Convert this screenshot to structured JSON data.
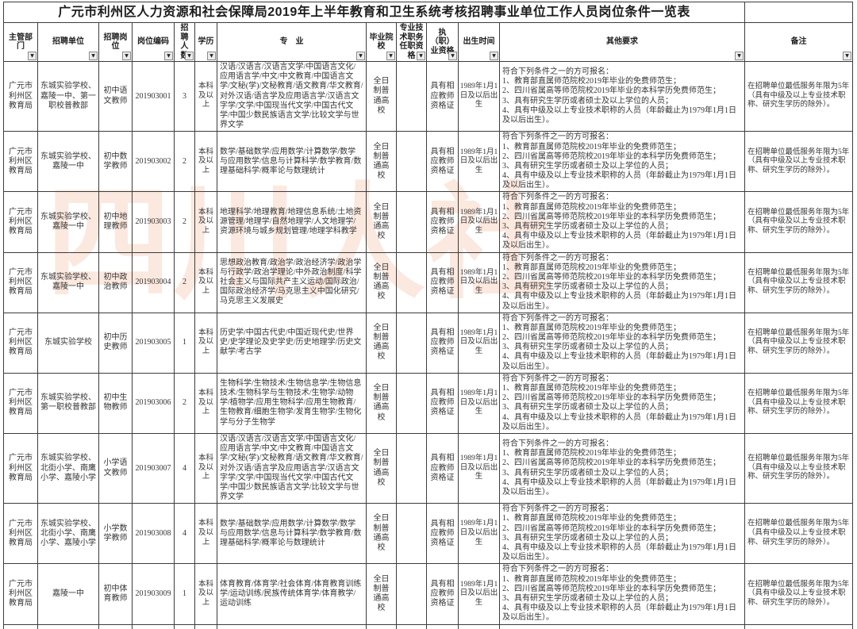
{
  "title": "广元市利州区人力资源和社会保障局2019年上半年教育和卫生系统考核招聘事业单位工作人员岗位条件一览表",
  "watermark": "四川人社",
  "filter_icon": "▼",
  "colors": {
    "border": "#3c3c3c",
    "text": "#2f2f2f",
    "watermark": "rgba(238,166,126,0.26)"
  },
  "table": {
    "columns": [
      {
        "key": "dept",
        "label": "主管部门"
      },
      {
        "key": "unit",
        "label": "招聘单位"
      },
      {
        "key": "position",
        "label": "招聘岗位"
      },
      {
        "key": "code",
        "label": "岗位编码"
      },
      {
        "key": "count",
        "label": "招聘人数"
      },
      {
        "key": "education",
        "label": "学历"
      },
      {
        "key": "major",
        "label": "专　业"
      },
      {
        "key": "school",
        "label": "毕业院校"
      },
      {
        "key": "tech_qual",
        "label": "专业技术职务任职资格"
      },
      {
        "key": "prof_cert",
        "label": "执（职）业资格"
      },
      {
        "key": "birth",
        "label": "出生时间"
      },
      {
        "key": "other",
        "label": "其他要求"
      },
      {
        "key": "remark",
        "label": "备注"
      }
    ],
    "rows": [
      {
        "dept": "广元市利州区教育局",
        "unit": "东城实验学校、嘉陵一中、第一职校普教部",
        "position": "初中语文教师",
        "code": "201903001",
        "count": "3",
        "education": "本科及以上",
        "major": "汉语/汉语言/汉语言文学/中国语言文化/应用语言学/中文/中文教育/中国语言文学/文秘(学)/文秘教育/语文教育/华文教育/对外汉语/语言学及应用语言学/汉语言文字学/文学/中国现当代文学/中国古代文学/中国少数民族语言文学/比较文学与世界文学",
        "school": "全日制普通高校",
        "tech_qual": "",
        "prof_cert": "具有相应教师资格证",
        "birth": "1989年1月1日及以后出生",
        "other": "符合下列条件之一的方可报名：\n1、教育部直属师范院校2019年毕业的免费师范生；\n2、四川省属高等师范院校2019年毕业的本科学历免费师范生；\n3、具有研究生学历或者硕士及以上学位的人员；\n4、具有中级及以上专业技术职称的人员（年龄截止为1979年1月1日及以后出生）。",
        "remark": "在招聘单位最低服务年限为5年（具有中级及以上专业技术职称、研究生学历的除外）。"
      },
      {
        "dept": "广元市利州区教育局",
        "unit": "东城实验学校、嘉陵一中",
        "position": "初中数学教师",
        "code": "201903002",
        "count": "2",
        "education": "本科及以上",
        "major": "数学/基础数学/应用数学/计算数学/数学与应用数学/信息与计算科学/数学教育/数理基础科学/概率论与数理统计",
        "school": "全日制普通高校",
        "tech_qual": "",
        "prof_cert": "具有相应教师资格证",
        "birth": "1989年1月1日及以后出生",
        "other": "符合下列条件之一的方可报名：\n1、教育部直属师范院校2019年毕业的免费师范生；\n2、四川省属高等师范院校2019年毕业的本科学历免费师范生；\n3、具有研究生学历或者硕士及以上学位的人员；\n4、具有中级及以上专业技术职称的人员（年龄截止为1979年1月1日及以后出生）。",
        "remark": "在招聘单位最低服务年限为5年（具有中级及以上专业技术职称、研究生学历的除外）。"
      },
      {
        "dept": "广元市利州区教育局",
        "unit": "东城实验学校、嘉陵一中",
        "position": "初中地理教师",
        "code": "201903003",
        "count": "2",
        "education": "本科及以上",
        "major": "地理科学/地理教育/地理信息系统/土地资源管理/地理学/自然地理学/人文地理学/资源环境与城乡规划管理/地理学科教学",
        "school": "全日制普通高校",
        "tech_qual": "",
        "prof_cert": "具有相应教师资格证",
        "birth": "1989年1月1日及以后出生",
        "other": "符合下列条件之一的方可报名：\n1、教育部直属师范院校2019年毕业的免费师范生；\n2、四川省属高等师范院校2019年毕业的本科学历免费师范生；\n3、具有研究生学历或者硕士及以上学位的人员；\n4、具有中级及以上专业技术职称的人员（年龄截止为1979年1月1日及以后出生）。",
        "remark": "在招聘单位最低服务年限为5年（具有中级及以上专业技术职称、研究生学历的除外）。"
      },
      {
        "dept": "广元市利州区教育局",
        "unit": "东城实验学校、嘉陵一中",
        "position": "初中政治教师",
        "code": "201903004",
        "count": "2",
        "education": "本科及以上",
        "major": "思想政治教育/政治学/政治经济学/政治学与行政学/政治学理论/中外政治制度/科学社会主义与国际共产主义运动/国际政治/国际政治经济学/马克思主义中国化研究/马克思主义发展史",
        "school": "全日制普通高校",
        "tech_qual": "",
        "prof_cert": "具有相应教师资格证",
        "birth": "1989年1月1日及以后出生",
        "other": "符合下列条件之一的方可报名：\n1、教育部直属师范院校2019年毕业的免费师范生；\n2、四川省属高等师范院校2019年毕业的本科学历免费师范生；\n3、具有研究生学历或者硕士及以上学位的人员；\n4、具有中级及以上专业技术职称的人员（年龄截止为1979年1月1日及以后出生）。",
        "remark": "在招聘单位最低服务年限为5年（具有中级及以上专业技术职称、研究生学历的除外）。"
      },
      {
        "dept": "广元市利州区教育局",
        "unit": "东城实验学校",
        "position": "初中历史教师",
        "code": "201903005",
        "count": "1",
        "education": "本科及以上",
        "major": "历史学/中国古代史/中国近现代史/世界史/史学理论及史学史/历史地理学/历史文献学/考古学",
        "school": "全日制普通高校",
        "tech_qual": "",
        "prof_cert": "具有相应教师资格证",
        "birth": "1989年1月1日及以后出生",
        "other": "符合下列条件之一的方可报名：\n1、教育部直属师范院校2019年毕业的免费师范生；\n2、四川省属高等师范院校2019年毕业的本科学历免费师范生；\n3、具有研究生学历或者硕士及以上学位的人员；\n4、具有中级及以上专业技术职称的人员（年龄截止为1979年1月1日及以后出生）。",
        "remark": "在招聘单位最低服务年限为5年（具有中级及以上专业技术职称、研究生学历的除外）。"
      },
      {
        "dept": "广元市利州区教育局",
        "unit": "东城实验学校、第一职校普教部",
        "position": "初中生物教师",
        "code": "201903006",
        "count": "2",
        "education": "本科及以上",
        "major": "生物科学/生物技术/生物信息学/生物信息技术/生物科学与生物技术/生物学/动物学/植物学/应用生物科学/应用生物教育/生物教育/细胞生物学/发育生物学/生物化学与分子生物学",
        "school": "全日制普通高校",
        "tech_qual": "",
        "prof_cert": "具有相应教师资格证",
        "birth": "1989年1月1日及以后出生",
        "other": "符合下列条件之一的方可报名：\n1、教育部直属师范院校2019年毕业的免费师范生；\n2、四川省属高等师范院校2019年毕业的本科学历免费师范生；\n3、具有研究生学历或者硕士及以上学位的人员；\n4、具有中级及以上专业技术职称的人员（年龄截止为1979年1月1日及以后出生）。",
        "remark": "在招聘单位最低服务年限为5年（具有中级及以上专业技术职称、研究生学历的除外）。"
      },
      {
        "dept": "广元市利州区教育局",
        "unit": "东城实验学校、北街小学、南鹰小学、嘉陵小学",
        "position": "小学语文教师",
        "code": "201903007",
        "count": "4",
        "education": "本科及以上",
        "major": "汉语/汉语言/汉语言文学/中国语言文化/应用语言学/中文/中文教育/中国语言文学/文秘(学)/文秘教育/语文教育/华文教育/对外汉语/语言学及应用语言学/汉语言文字学/文学/中国现当代文学/中国古代文学/中国少数民族语言文学/比较文学与世界文学",
        "school": "全日制普通高校",
        "tech_qual": "",
        "prof_cert": "具有相应教师资格证",
        "birth": "1989年1月1日及以后出生",
        "other": "符合下列条件之一的方可报名：\n1、教育部直属师范院校2019年毕业的免费师范生；\n2、四川省属高等师范院校2019年毕业的本科学历免费师范生；\n3、具有研究生学历或者硕士及以上学位的人员；\n4、具有中级及以上专业技术职称的人员（年龄截止为1979年1月1日及以后出生）。",
        "remark": "在招聘单位最低服务年限为5年（具有中级及以上专业技术职称、研究生学历的除外）。"
      },
      {
        "dept": "广元市利州区教育局",
        "unit": "东城实验学校、北街小学、南鹰小学、嘉陵小学",
        "position": "小学数学教师",
        "code": "201903008",
        "count": "4",
        "education": "本科及以上",
        "major": "数学/基础数学/应用数学/计算数学/数学与应用数学/信息与计算科学/数学教育/数理基础科学/概率论与数理统计",
        "school": "全日制普通高校",
        "tech_qual": "",
        "prof_cert": "具有相应教师资格证",
        "birth": "1989年1月1日及以后出生",
        "other": "符合下列条件之一的方可报名：\n1、教育部直属师范院校2019年毕业的免费师范生；\n2、四川省属高等师范院校2019年毕业的本科学历免费师范生；\n3、具有研究生学历或者硕士及以上学位的人员；\n4、具有中级及以上专业技术职称的人员（年龄截止为1979年1月1日及以后出生）。",
        "remark": "在招聘单位最低服务年限为5年（具有中级及以上专业技术职称、研究生学历的除外）。"
      },
      {
        "dept": "广元市利州区教育局",
        "unit": "嘉陵一中",
        "position": "初中体育教师",
        "code": "201903009",
        "count": "1",
        "education": "本科及以上",
        "major": "体育教育/体育学/社会体育/体育教育训练学/运动训练/民族传统体育学/体育教学/运动训练",
        "school": "全日制普通高校",
        "tech_qual": "",
        "prof_cert": "具有相应教师资格证",
        "birth": "1989年1月1日及以后出生",
        "other": "符合下列条件之一的方可报名：\n1、教育部直属师范院校2019年毕业的免费师范生；\n2、四川省属高等师范院校2019年毕业的本科学历免费师范生；\n3、具有研究生学历或者硕士及以上学位的人员；\n4、具有中级及以上专业技术职称的人员（年龄截止为1979年1月1日及以后出生）。",
        "remark": "在招聘单位最低服务年限为5年（具有中级及以上专业技术职称、研究生学历的除外）。"
      }
    ]
  }
}
